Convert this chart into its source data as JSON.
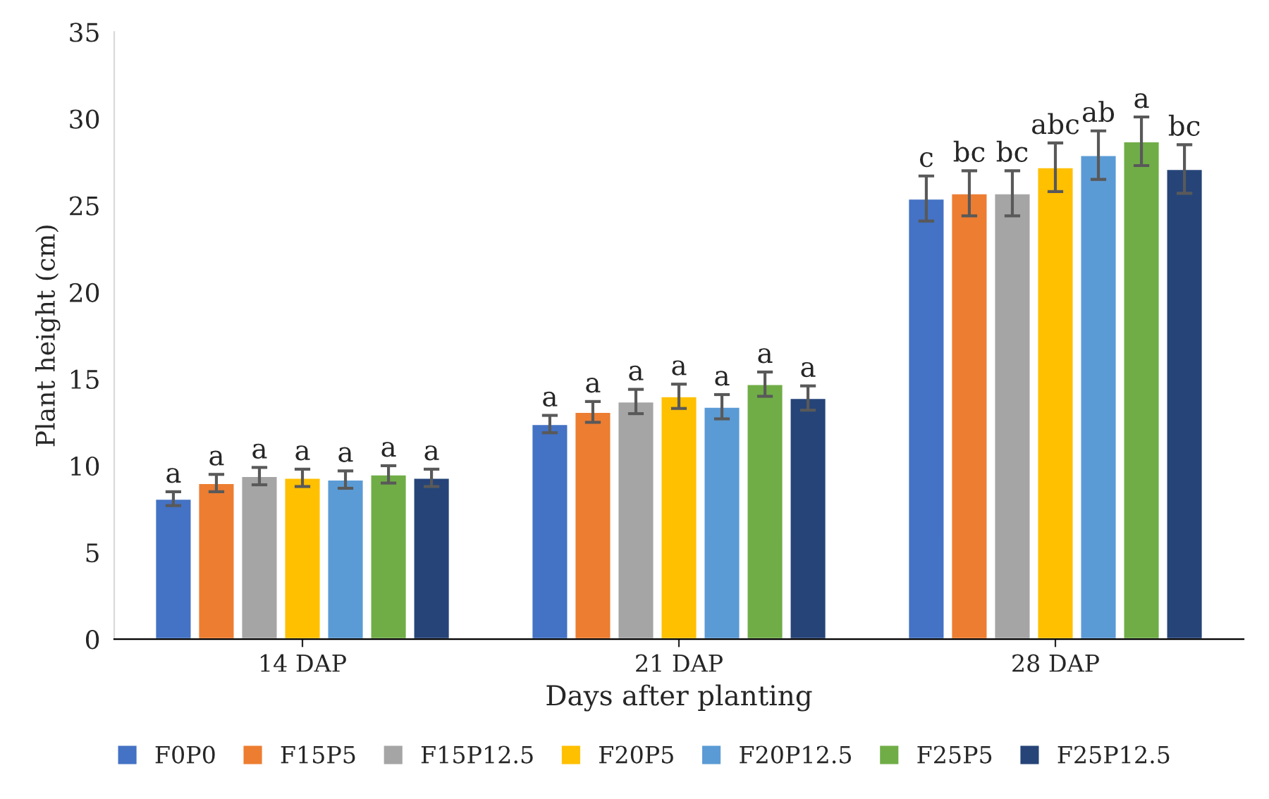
{
  "chart_data": {
    "type": "bar",
    "xlabel": "Days after planting",
    "ylabel": "Plant height (cm)",
    "categories": [
      "14 DAP",
      "21 DAP",
      "28 DAP"
    ],
    "ylim": [
      0,
      35
    ],
    "yticks": [
      0,
      5,
      10,
      15,
      20,
      25,
      30,
      35
    ],
    "grid": false,
    "legend": "bottom",
    "series": [
      {
        "name": "F0P0",
        "color": "#4472c4",
        "values": [
          8.1,
          12.4,
          25.4
        ],
        "errors": [
          0.4,
          0.5,
          1.3
        ],
        "value_labels": [
          "a",
          "a",
          "c"
        ]
      },
      {
        "name": "F15P5",
        "color": "#ed7d31",
        "values": [
          9.0,
          13.1,
          25.7
        ],
        "errors": [
          0.5,
          0.6,
          1.3
        ],
        "value_labels": [
          "a",
          "a",
          "bc"
        ]
      },
      {
        "name": "F15P12.5",
        "color": "#a5a5a5",
        "values": [
          9.4,
          13.7,
          25.7
        ],
        "errors": [
          0.5,
          0.7,
          1.3
        ],
        "value_labels": [
          "a",
          "a",
          "bc"
        ]
      },
      {
        "name": "F20P5",
        "color": "#ffc000",
        "values": [
          9.3,
          14.0,
          27.2
        ],
        "errors": [
          0.5,
          0.7,
          1.4
        ],
        "value_labels": [
          "a",
          "a",
          "abc"
        ]
      },
      {
        "name": "F20P12.5",
        "color": "#5b9bd5",
        "values": [
          9.2,
          13.4,
          27.9
        ],
        "errors": [
          0.5,
          0.7,
          1.4
        ],
        "value_labels": [
          "a",
          "a",
          "ab"
        ]
      },
      {
        "name": "F25P5",
        "color": "#70ad47",
        "values": [
          9.5,
          14.7,
          28.7
        ],
        "errors": [
          0.5,
          0.7,
          1.4
        ],
        "value_labels": [
          "a",
          "a",
          "a"
        ]
      },
      {
        "name": "F25P12.5",
        "color": "#264478",
        "values": [
          9.3,
          13.9,
          27.1
        ],
        "errors": [
          0.5,
          0.7,
          1.4
        ],
        "value_labels": [
          "a",
          "a",
          "bc"
        ]
      }
    ]
  }
}
